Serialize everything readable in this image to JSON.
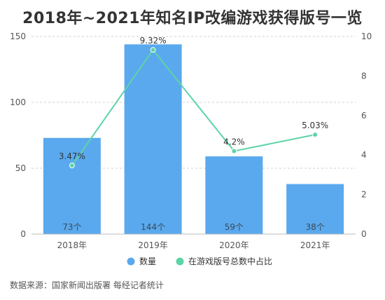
{
  "title": "2018年~2021年知名IP改编游戏获得版号一览",
  "source": "数据来源：国家新闻出版署 每经记者统计",
  "colors": {
    "bar": "#5aa9ee",
    "line": "#5dd4a6",
    "grid": "#cfcfcf",
    "axis_text": "#555555"
  },
  "chart_data": {
    "type": "bar",
    "categories": [
      "2018年",
      "2019年",
      "2020年",
      "2021年"
    ],
    "series": [
      {
        "name": "数量",
        "type": "bar",
        "axis": "left",
        "values": [
          73,
          144,
          59,
          38
        ],
        "labels": [
          "73个",
          "144个",
          "59个",
          "38个"
        ]
      },
      {
        "name": "在游戏版号总数中占比",
        "type": "line",
        "axis": "right",
        "values": [
          3.47,
          9.32,
          4.2,
          5.03
        ],
        "labels": [
          "3.47%",
          "9.32%",
          "4.2%",
          "5.03%"
        ]
      }
    ],
    "y_left": {
      "min": 0,
      "max": 150,
      "ticks": [
        0,
        50,
        100,
        150
      ]
    },
    "y_right": {
      "min": 0,
      "max": 10,
      "ticks": [
        0,
        2,
        4,
        6,
        8,
        10
      ]
    },
    "grid": true,
    "legend_position": "bottom"
  }
}
